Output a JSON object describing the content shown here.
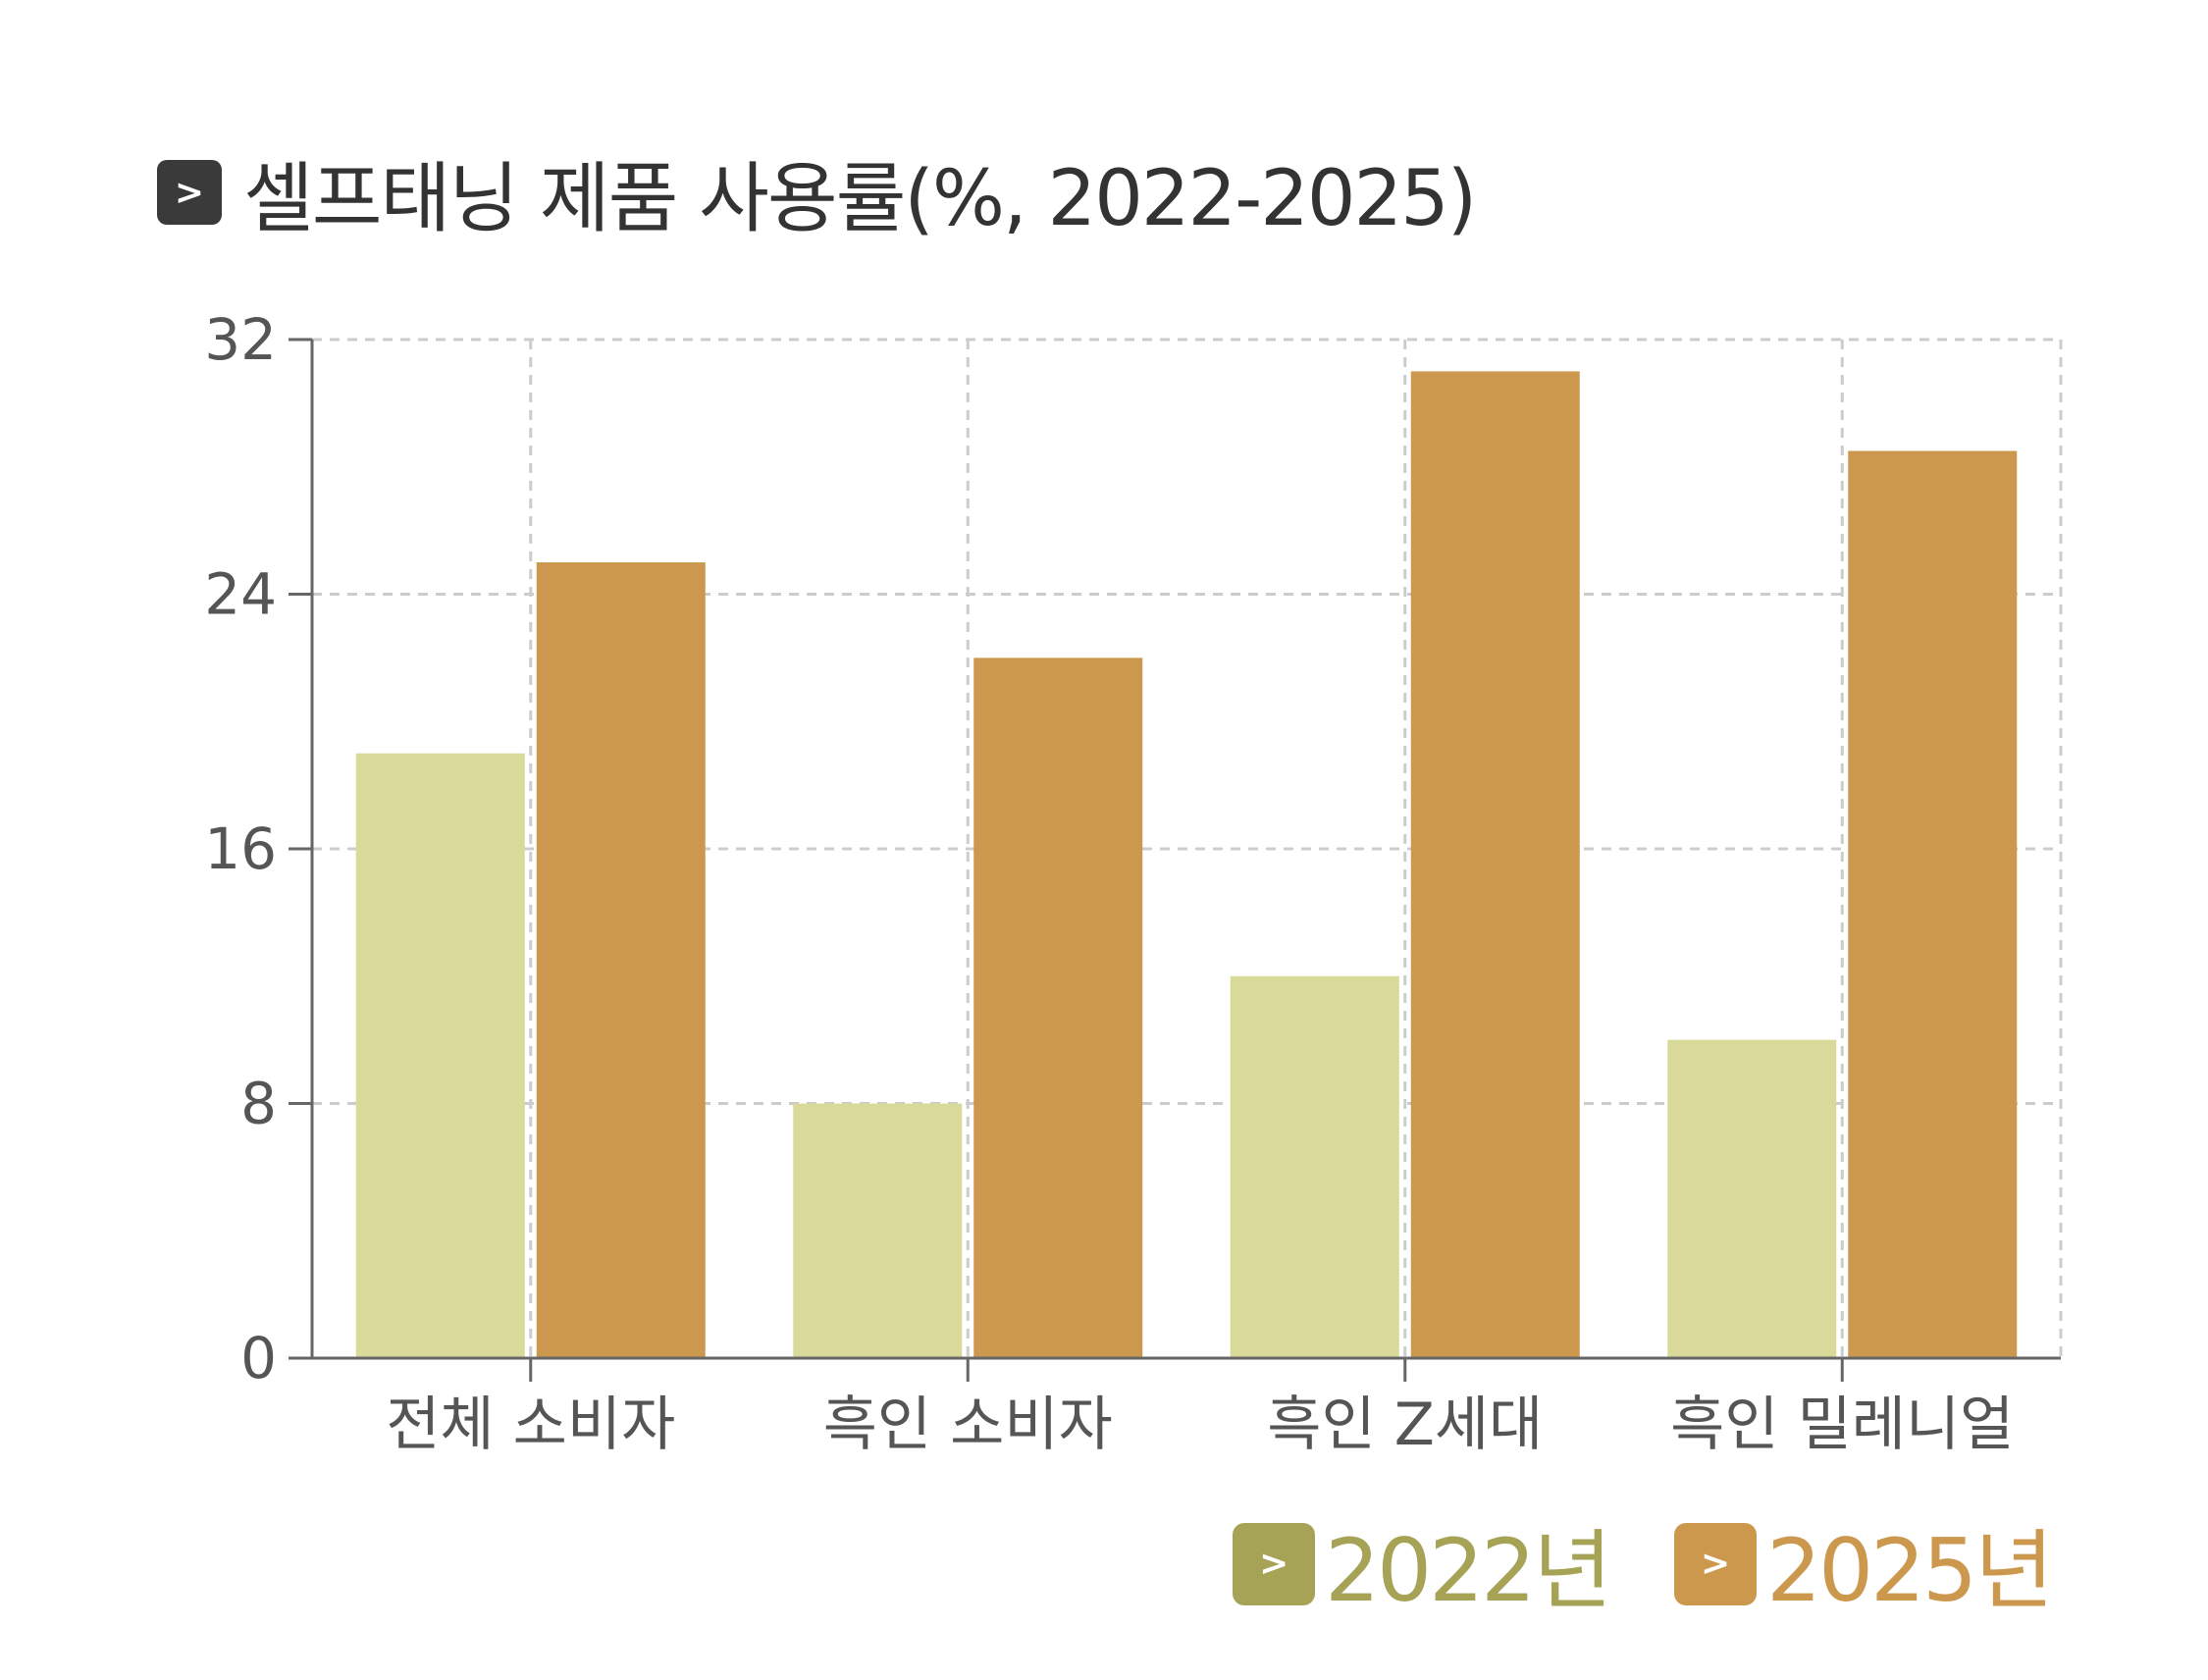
{
  "title": "셀프태닝 제품 사용률(%, 2022-2025)",
  "badge_glyph": ">",
  "chart_data": {
    "type": "bar",
    "title": "셀프태닝 제품 사용률(%, 2022-2025)",
    "categories": [
      "전체 소비자",
      "흑인 소비자",
      "흑인 Z세대",
      "흑인 밀레니얼"
    ],
    "series": [
      {
        "name": "2022년",
        "values": [
          19,
          8,
          12,
          10
        ],
        "color": "#d9da9a",
        "legend_color": "#a6a256"
      },
      {
        "name": "2025년",
        "values": [
          25,
          22,
          31,
          28.5
        ],
        "color": "#cc984e",
        "legend_color": "#cc984e"
      }
    ],
    "yticks": [
      0,
      8,
      16,
      24,
      32
    ],
    "ylim": [
      0,
      32
    ],
    "xlabel": "",
    "ylabel": "",
    "grid": true,
    "legend_position": "bottom-right"
  }
}
